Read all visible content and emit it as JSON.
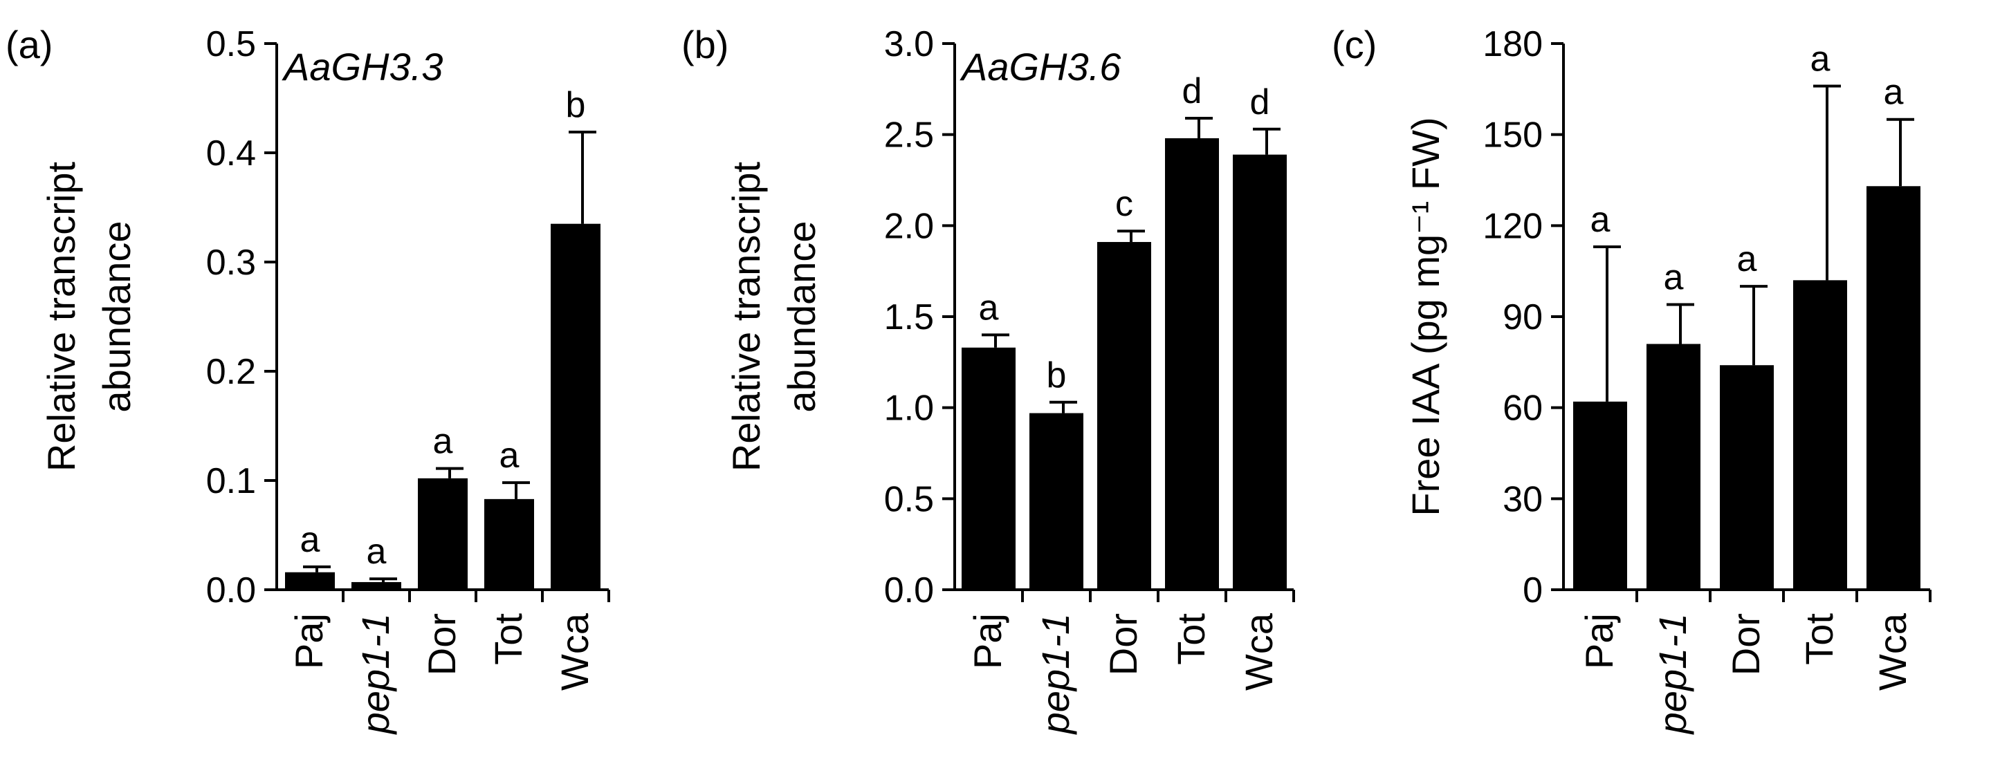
{
  "chart_data": [
    {
      "type": "bar",
      "panel_label": "(a)",
      "annotation": "AaGH3.3",
      "ylabel_lines": [
        "Relative transcript",
        "abundance"
      ],
      "categories": [
        "Paj",
        "pep1-1",
        "Dor",
        "Tot",
        "Wca"
      ],
      "italic_categories": [
        "pep1-1"
      ],
      "values": [
        0.016,
        0.007,
        0.102,
        0.083,
        0.335
      ],
      "errors": [
        0.005,
        0.003,
        0.009,
        0.015,
        0.084
      ],
      "significance": [
        "a",
        "a",
        "a",
        "a",
        "b"
      ],
      "ylim": [
        0,
        0.5
      ],
      "yticks": [
        "0.0",
        "0.1",
        "0.2",
        "0.3",
        "0.4",
        "0.5"
      ]
    },
    {
      "type": "bar",
      "panel_label": "(b)",
      "annotation": "AaGH3.6",
      "ylabel_lines": [
        "Relative transcript",
        "abundance"
      ],
      "categories": [
        "Paj",
        "pep1-1",
        "Dor",
        "Tot",
        "Wca"
      ],
      "italic_categories": [
        "pep1-1"
      ],
      "values": [
        1.33,
        0.97,
        1.91,
        2.48,
        2.39
      ],
      "errors": [
        0.07,
        0.06,
        0.06,
        0.11,
        0.14
      ],
      "significance": [
        "a",
        "b",
        "c",
        "d",
        "d"
      ],
      "ylim": [
        0,
        3.0
      ],
      "yticks": [
        "0.0",
        "0.5",
        "1.0",
        "1.5",
        "2.0",
        "2.5",
        "3.0"
      ]
    },
    {
      "type": "bar",
      "panel_label": "(c)",
      "annotation": "",
      "ylabel_lines": [
        "Free IAA (pg mg⁻¹ FW)"
      ],
      "categories": [
        "Paj",
        "pep1-1",
        "Dor",
        "Tot",
        "Wca"
      ],
      "italic_categories": [
        "pep1-1"
      ],
      "values": [
        62,
        81,
        74,
        102,
        133
      ],
      "errors": [
        51,
        13,
        26,
        64,
        22
      ],
      "significance": [
        "a",
        "a",
        "a",
        "a",
        "a"
      ],
      "ylim": [
        0,
        180
      ],
      "yticks": [
        "0",
        "30",
        "60",
        "90",
        "120",
        "150",
        "180"
      ]
    }
  ]
}
